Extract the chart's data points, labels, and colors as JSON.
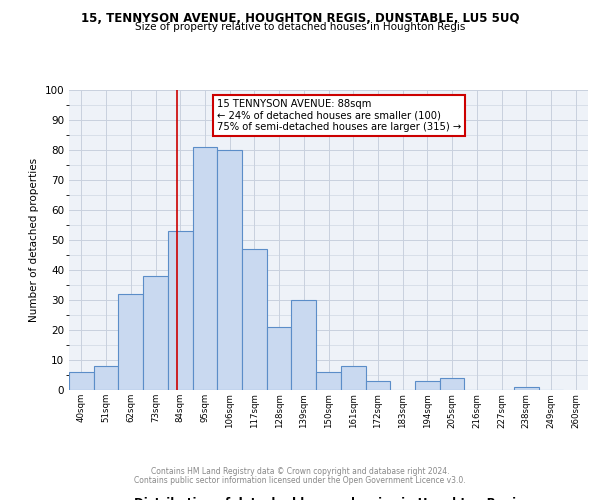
{
  "title1": "15, TENNYSON AVENUE, HOUGHTON REGIS, DUNSTABLE, LU5 5UQ",
  "title2": "Size of property relative to detached houses in Houghton Regis",
  "xlabel": "Distribution of detached houses by size in Houghton Regis",
  "ylabel": "Number of detached properties",
  "bin_labels": [
    "40sqm",
    "51sqm",
    "62sqm",
    "73sqm",
    "84sqm",
    "95sqm",
    "106sqm",
    "117sqm",
    "128sqm",
    "139sqm",
    "150sqm",
    "161sqm",
    "172sqm",
    "183sqm",
    "194sqm",
    "205sqm",
    "216sqm",
    "227sqm",
    "238sqm",
    "249sqm",
    "260sqm"
  ],
  "bin_edges": [
    40,
    51,
    62,
    73,
    84,
    95,
    106,
    117,
    128,
    139,
    150,
    161,
    172,
    183,
    194,
    205,
    216,
    227,
    238,
    249,
    260
  ],
  "counts": [
    6,
    8,
    32,
    38,
    53,
    81,
    80,
    47,
    21,
    30,
    6,
    8,
    3,
    0,
    3,
    4,
    0,
    0,
    1,
    0
  ],
  "bar_color": "#c9d9f0",
  "bar_edge_color": "#5b8dc8",
  "grid_color": "#c8d0de",
  "bg_color": "#eef2f8",
  "vline_x": 88,
  "vline_color": "#cc0000",
  "annotation_title": "15 TENNYSON AVENUE: 88sqm",
  "annotation_line1": "← 24% of detached houses are smaller (100)",
  "annotation_line2": "75% of semi-detached houses are larger (315) →",
  "annotation_box_color": "#cc0000",
  "ylim": [
    0,
    100
  ],
  "footer1": "Contains HM Land Registry data © Crown copyright and database right 2024.",
  "footer2": "Contains public sector information licensed under the Open Government Licence v3.0."
}
